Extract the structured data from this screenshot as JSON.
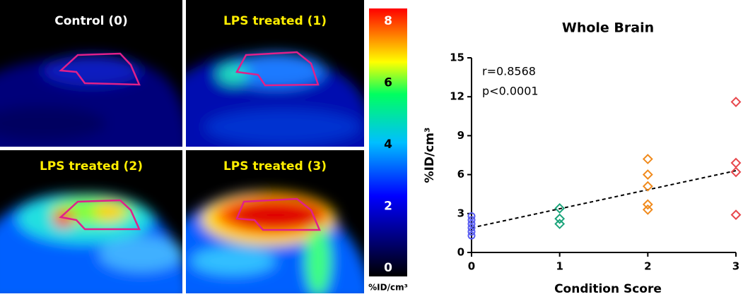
{
  "panels": [
    {
      "title": "Control (0)"
    },
    {
      "title": "LPS treated (1)"
    },
    {
      "title": "LPS treated (2)"
    },
    {
      "title": "LPS treated (3)"
    }
  ],
  "colorbar": {
    "label": "%ID/cm³",
    "lim": [
      0,
      8
    ],
    "ticks": [
      0,
      2,
      4,
      6,
      8
    ]
  },
  "chart_data": {
    "type": "scatter",
    "title": "Whole Brain",
    "xlabel": "Condition Score",
    "ylabel": "%ID/cm³",
    "annotations": [
      "r=0.8568",
      "p<0.0001"
    ],
    "xlim": [
      0,
      3
    ],
    "xticks": [
      0,
      1,
      2,
      3
    ],
    "ylim": [
      0,
      15
    ],
    "yticks": [
      0,
      3,
      6,
      9,
      12,
      15
    ],
    "series": [
      {
        "color": "#5a5ef0",
        "marker": "circle",
        "x": [
          0,
          0,
          0,
          0,
          0,
          0
        ],
        "y": [
          2.8,
          2.5,
          2.2,
          1.9,
          1.6,
          1.3
        ]
      },
      {
        "color": "#1aa37a",
        "marker": "diamond",
        "x": [
          1,
          1,
          1
        ],
        "y": [
          3.4,
          2.6,
          2.2
        ]
      },
      {
        "color": "#f08a1c",
        "marker": "diamond",
        "x": [
          2,
          2,
          2,
          2,
          2
        ],
        "y": [
          7.2,
          6.0,
          5.1,
          3.7,
          3.3
        ]
      },
      {
        "color": "#e8474c",
        "marker": "diamond",
        "x": [
          3,
          3,
          3,
          3
        ],
        "y": [
          11.6,
          6.9,
          6.2,
          2.9
        ]
      }
    ],
    "trendline": {
      "x": [
        0,
        3
      ],
      "y": [
        1.9,
        6.3
      ]
    }
  }
}
